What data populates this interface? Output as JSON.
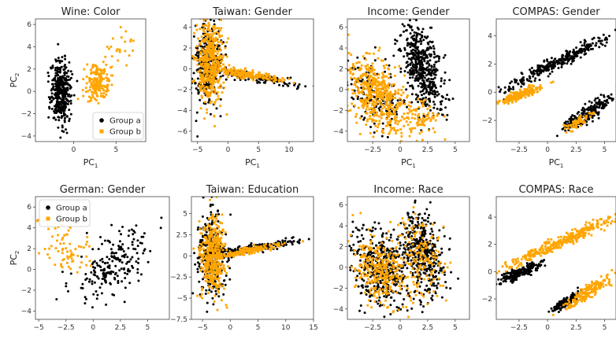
{
  "figure": {
    "colors": {
      "group_a": "#000000",
      "group_b": "#ffa500"
    }
  },
  "chart_data": [
    {
      "type": "scatter",
      "title": "Wine: Color",
      "xlabel": "PC",
      "xlabel_sub": "1",
      "ylabel": "PC",
      "ylabel_sub": "2",
      "xlim": [
        -4.5,
        8.5
      ],
      "ylim": [
        -4.5,
        6.5
      ],
      "xticks": [
        0,
        5
      ],
      "yticks": [
        -4,
        -2,
        0,
        2,
        4,
        6
      ],
      "legend": {
        "position": "lower-right",
        "entries": [
          "Group a",
          "Group b"
        ]
      },
      "series": [
        {
          "name": "Group a",
          "marker": "circle",
          "clusters": [
            {
              "cx": -1.5,
              "cy": 0,
              "sx": 0.6,
              "sy": 1.4,
              "n": 380,
              "rho": 0
            }
          ]
        },
        {
          "name": "Group b",
          "marker": "square",
          "clusters": [
            {
              "cx": 2.8,
              "cy": 0.8,
              "sx": 0.7,
              "sy": 0.8,
              "n": 180,
              "rho": 0
            },
            {
              "cx": 5.5,
              "cy": 3.8,
              "sx": 1.3,
              "sy": 0.8,
              "n": 25,
              "rho": 0.5
            }
          ]
        }
      ]
    },
    {
      "type": "scatter",
      "title": "Taiwan: Gender",
      "xlabel": "PC",
      "xlabel_sub": "1",
      "ylabel": "",
      "ylabel_sub": "",
      "xlim": [
        -6,
        14
      ],
      "ylim": [
        -7,
        4.8
      ],
      "xticks": [
        -5,
        0,
        5,
        10
      ],
      "yticks": [
        -6,
        -4,
        -2,
        0,
        2,
        4
      ],
      "legend": null,
      "series": [
        {
          "name": "Group a",
          "marker": "circle",
          "clusters": [
            {
              "cx": -3.5,
              "cy": 0.5,
              "sx": 1.2,
              "sy": 2.2,
              "n": 320,
              "rho": 0
            },
            {
              "cx": 4,
              "cy": -0.8,
              "sx": 3.5,
              "sy": 0.4,
              "n": 150,
              "rho": -0.85
            }
          ]
        },
        {
          "name": "Group b",
          "marker": "square",
          "clusters": [
            {
              "cx": -3,
              "cy": 0.8,
              "sx": 1.1,
              "sy": 2,
              "n": 420,
              "rho": 0
            },
            {
              "cx": 3,
              "cy": -0.5,
              "sx": 3,
              "sy": 0.35,
              "n": 200,
              "rho": -0.85
            }
          ]
        }
      ]
    },
    {
      "type": "scatter",
      "title": "Income: Gender",
      "xlabel": "PC",
      "xlabel_sub": "1",
      "ylabel": "",
      "ylabel_sub": "",
      "xlim": [
        -4.8,
        6.3
      ],
      "ylim": [
        -5,
        6.8
      ],
      "xticks": [
        -2.5,
        0,
        2.5,
        5
      ],
      "yticks": [
        -4,
        -2,
        0,
        2,
        4,
        6
      ],
      "legend": null,
      "series": [
        {
          "name": "Group a",
          "marker": "circle",
          "clusters": [
            {
              "cx": 2,
              "cy": 2,
              "sx": 1,
              "sy": 2.2,
              "n": 500,
              "rho": -0.5
            },
            {
              "cx": -2,
              "cy": -1,
              "sx": 1.4,
              "sy": 1.8,
              "n": 160,
              "rho": -0.4
            }
          ]
        },
        {
          "name": "Group b",
          "marker": "square",
          "clusters": [
            {
              "cx": -2,
              "cy": -0.5,
              "sx": 1.3,
              "sy": 1.8,
              "n": 500,
              "rho": -0.4
            },
            {
              "cx": 1.8,
              "cy": -2.8,
              "sx": 0.9,
              "sy": 1,
              "n": 80,
              "rho": 0
            }
          ]
        }
      ]
    },
    {
      "type": "scatter",
      "title": "COMPAS: Gender",
      "xlabel": "PC",
      "xlabel_sub": "1",
      "ylabel": "",
      "ylabel_sub": "",
      "xlim": [
        -4.5,
        6
      ],
      "ylim": [
        -3.5,
        5.2
      ],
      "xticks": [
        -2.5,
        0,
        2.5,
        5
      ],
      "yticks": [
        -2,
        0,
        2,
        4
      ],
      "legend": null,
      "series": [
        {
          "name": "Group a",
          "marker": "circle",
          "clusters": [
            {
              "cx": 1,
              "cy": 2.2,
              "sx": 2.4,
              "sy": 1,
              "n": 320,
              "rho": 0.97
            },
            {
              "cx": 3.5,
              "cy": -1.5,
              "sx": 1.2,
              "sy": 0.7,
              "n": 220,
              "rho": 0.9
            }
          ]
        },
        {
          "name": "Group b",
          "marker": "square",
          "clusters": [
            {
              "cx": -2.5,
              "cy": -0.2,
              "sx": 0.9,
              "sy": 0.3,
              "n": 200,
              "rho": 0.85
            },
            {
              "cx": 2.5,
              "cy": -2.2,
              "sx": 0.6,
              "sy": 0.3,
              "n": 60,
              "rho": 0.8
            }
          ]
        }
      ]
    },
    {
      "type": "scatter",
      "title": "German: Gender",
      "xlabel": "",
      "xlabel_sub": "",
      "ylabel": "PC",
      "ylabel_sub": "2",
      "xlim": [
        -5.3,
        7
      ],
      "ylim": [
        -4.8,
        7
      ],
      "xticks": [
        -5,
        -2.5,
        0,
        2.5,
        5
      ],
      "yticks": [
        -4,
        -2,
        0,
        2,
        4,
        6
      ],
      "legend": {
        "position": "upper-left",
        "entries": [
          "Group a",
          "Group b"
        ]
      },
      "series": [
        {
          "name": "Group a",
          "marker": "circle",
          "clusters": [
            {
              "cx": 2,
              "cy": 0.5,
              "sx": 1.8,
              "sy": 1.7,
              "n": 210,
              "rho": 0.55
            }
          ]
        },
        {
          "name": "Group b",
          "marker": "square",
          "clusters": [
            {
              "cx": -2.5,
              "cy": 2,
              "sx": 1.2,
              "sy": 1.6,
              "n": 80,
              "rho": -0.3
            }
          ]
        }
      ]
    },
    {
      "type": "scatter",
      "title": "Taiwan: Education",
      "xlabel": "",
      "xlabel_sub": "",
      "ylabel": "",
      "ylabel_sub": "",
      "xlim": [
        -7,
        15
      ],
      "ylim": [
        -7.5,
        7
      ],
      "xticks": [
        -5,
        0,
        5,
        10,
        15
      ],
      "yticks": [
        -7.5,
        -5,
        -2.5,
        0,
        2.5,
        5
      ],
      "legend": null,
      "series": [
        {
          "name": "Group a",
          "marker": "circle",
          "clusters": [
            {
              "cx": -3.5,
              "cy": 0,
              "sx": 1.2,
              "sy": 2.4,
              "n": 320,
              "rho": 0
            },
            {
              "cx": 5,
              "cy": 1,
              "sx": 4.2,
              "sy": 0.5,
              "n": 180,
              "rho": 0.9
            }
          ]
        },
        {
          "name": "Group b",
          "marker": "square",
          "clusters": [
            {
              "cx": -3,
              "cy": 0,
              "sx": 1.1,
              "sy": 2.2,
              "n": 400,
              "rho": 0
            },
            {
              "cx": 3,
              "cy": 0.6,
              "sx": 3,
              "sy": 0.4,
              "n": 200,
              "rho": 0.9
            }
          ]
        }
      ]
    },
    {
      "type": "scatter",
      "title": "Income: Race",
      "xlabel": "",
      "xlabel_sub": "",
      "ylabel": "",
      "ylabel_sub": "",
      "xlim": [
        -4.8,
        6.3
      ],
      "ylim": [
        -5,
        6.8
      ],
      "xticks": [
        -2.5,
        0,
        2.5,
        5
      ],
      "yticks": [
        -4,
        -2,
        0,
        2,
        4,
        6
      ],
      "legend": null,
      "series": [
        {
          "name": "Group a",
          "marker": "circle",
          "clusters": [
            {
              "cx": -1.8,
              "cy": 0,
              "sx": 1.4,
              "sy": 2,
              "n": 420,
              "rho": -0.3
            },
            {
              "cx": 2,
              "cy": 1.5,
              "sx": 1,
              "sy": 2.2,
              "n": 380,
              "rho": -0.4
            }
          ]
        },
        {
          "name": "Group b",
          "marker": "square",
          "clusters": [
            {
              "cx": -1.8,
              "cy": -0.3,
              "sx": 1.3,
              "sy": 1.7,
              "n": 320,
              "rho": -0.3
            },
            {
              "cx": 1.8,
              "cy": 1,
              "sx": 1,
              "sy": 2,
              "n": 160,
              "rho": -0.4
            }
          ]
        }
      ]
    },
    {
      "type": "scatter",
      "title": "COMPAS: Race",
      "xlabel": "",
      "xlabel_sub": "",
      "ylabel": "",
      "ylabel_sub": "",
      "xlim": [
        -4.5,
        6
      ],
      "ylim": [
        -3.5,
        5.5
      ],
      "xticks": [
        -2.5,
        0,
        2.5,
        5
      ],
      "yticks": [
        -2,
        0,
        2,
        4
      ],
      "legend": null,
      "series": [
        {
          "name": "Group a",
          "marker": "circle",
          "clusters": [
            {
              "cx": -2.5,
              "cy": -0.1,
              "sx": 0.9,
              "sy": 0.35,
              "n": 220,
              "rho": 0.85
            },
            {
              "cx": 1.5,
              "cy": -2.3,
              "sx": 0.6,
              "sy": 0.35,
              "n": 130,
              "rho": 0.85
            }
          ]
        },
        {
          "name": "Group b",
          "marker": "square",
          "clusters": [
            {
              "cx": 1.2,
              "cy": 2.2,
              "sx": 2.5,
              "sy": 1,
              "n": 320,
              "rho": 0.97
            },
            {
              "cx": 3.5,
              "cy": -1.5,
              "sx": 1,
              "sy": 0.6,
              "n": 180,
              "rho": 0.9
            }
          ]
        }
      ]
    }
  ]
}
